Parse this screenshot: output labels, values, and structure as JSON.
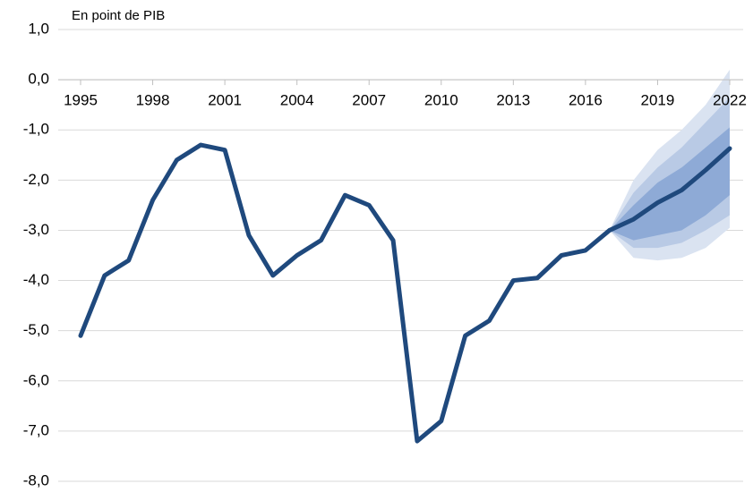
{
  "chart_data": {
    "type": "line",
    "title": "En point de PIB",
    "x": [
      1995,
      1996,
      1997,
      1998,
      1999,
      2000,
      2001,
      2002,
      2003,
      2004,
      2005,
      2006,
      2007,
      2008,
      2009,
      2010,
      2011,
      2012,
      2013,
      2014,
      2015,
      2016,
      2017,
      2018,
      2019,
      2020,
      2021,
      2022
    ],
    "values": [
      -5.1,
      -3.9,
      -3.6,
      -2.4,
      -1.6,
      -1.3,
      -1.4,
      -3.1,
      -3.9,
      -3.5,
      -3.2,
      -2.3,
      -2.5,
      -3.2,
      -7.2,
      -6.8,
      -5.1,
      -4.8,
      -4.0,
      -3.95,
      -3.5,
      -3.4,
      -3.0,
      -2.78,
      -2.45,
      -2.2,
      -1.8,
      -1.37
    ],
    "color": "#1f497d",
    "fan_x": [
      2017,
      2018,
      2019,
      2020,
      2021,
      2022
    ],
    "fan": [
      {
        "color": "#dae3f1",
        "upper": [
          -3.0,
          -2.0,
          -1.4,
          -1.0,
          -0.5,
          0.2
        ],
        "lower": [
          -3.0,
          -3.55,
          -3.6,
          -3.55,
          -3.35,
          -2.95
        ]
      },
      {
        "color": "#b9cae5",
        "upper": [
          -3.0,
          -2.25,
          -1.75,
          -1.35,
          -0.85,
          -0.35
        ],
        "lower": [
          -3.0,
          -3.35,
          -3.35,
          -3.25,
          -3.0,
          -2.7
        ]
      },
      {
        "color": "#8eaad6",
        "upper": [
          -3.0,
          -2.5,
          -2.05,
          -1.75,
          -1.35,
          -0.95
        ],
        "lower": [
          -3.0,
          -3.2,
          -3.1,
          -3.0,
          -2.7,
          -2.3
        ]
      }
    ],
    "xlim": [
      1995,
      2022
    ],
    "xticks": [
      1995,
      1998,
      2001,
      2004,
      2007,
      2010,
      2013,
      2016,
      2019,
      2022
    ],
    "ylim": [
      -8,
      1
    ],
    "yticks": [
      {
        "value": 1,
        "label": "1,0"
      },
      {
        "value": 0,
        "label": "0,0"
      },
      {
        "value": -1,
        "label": "-1,0"
      },
      {
        "value": -2,
        "label": "-2,0"
      },
      {
        "value": -3,
        "label": "-3,0"
      },
      {
        "value": -4,
        "label": "-4,0"
      },
      {
        "value": -5,
        "label": "-5,0"
      },
      {
        "value": -6,
        "label": "-6,0"
      },
      {
        "value": -7,
        "label": "-7,0"
      },
      {
        "value": -8,
        "label": "-8,0"
      }
    ],
    "grid": true
  }
}
